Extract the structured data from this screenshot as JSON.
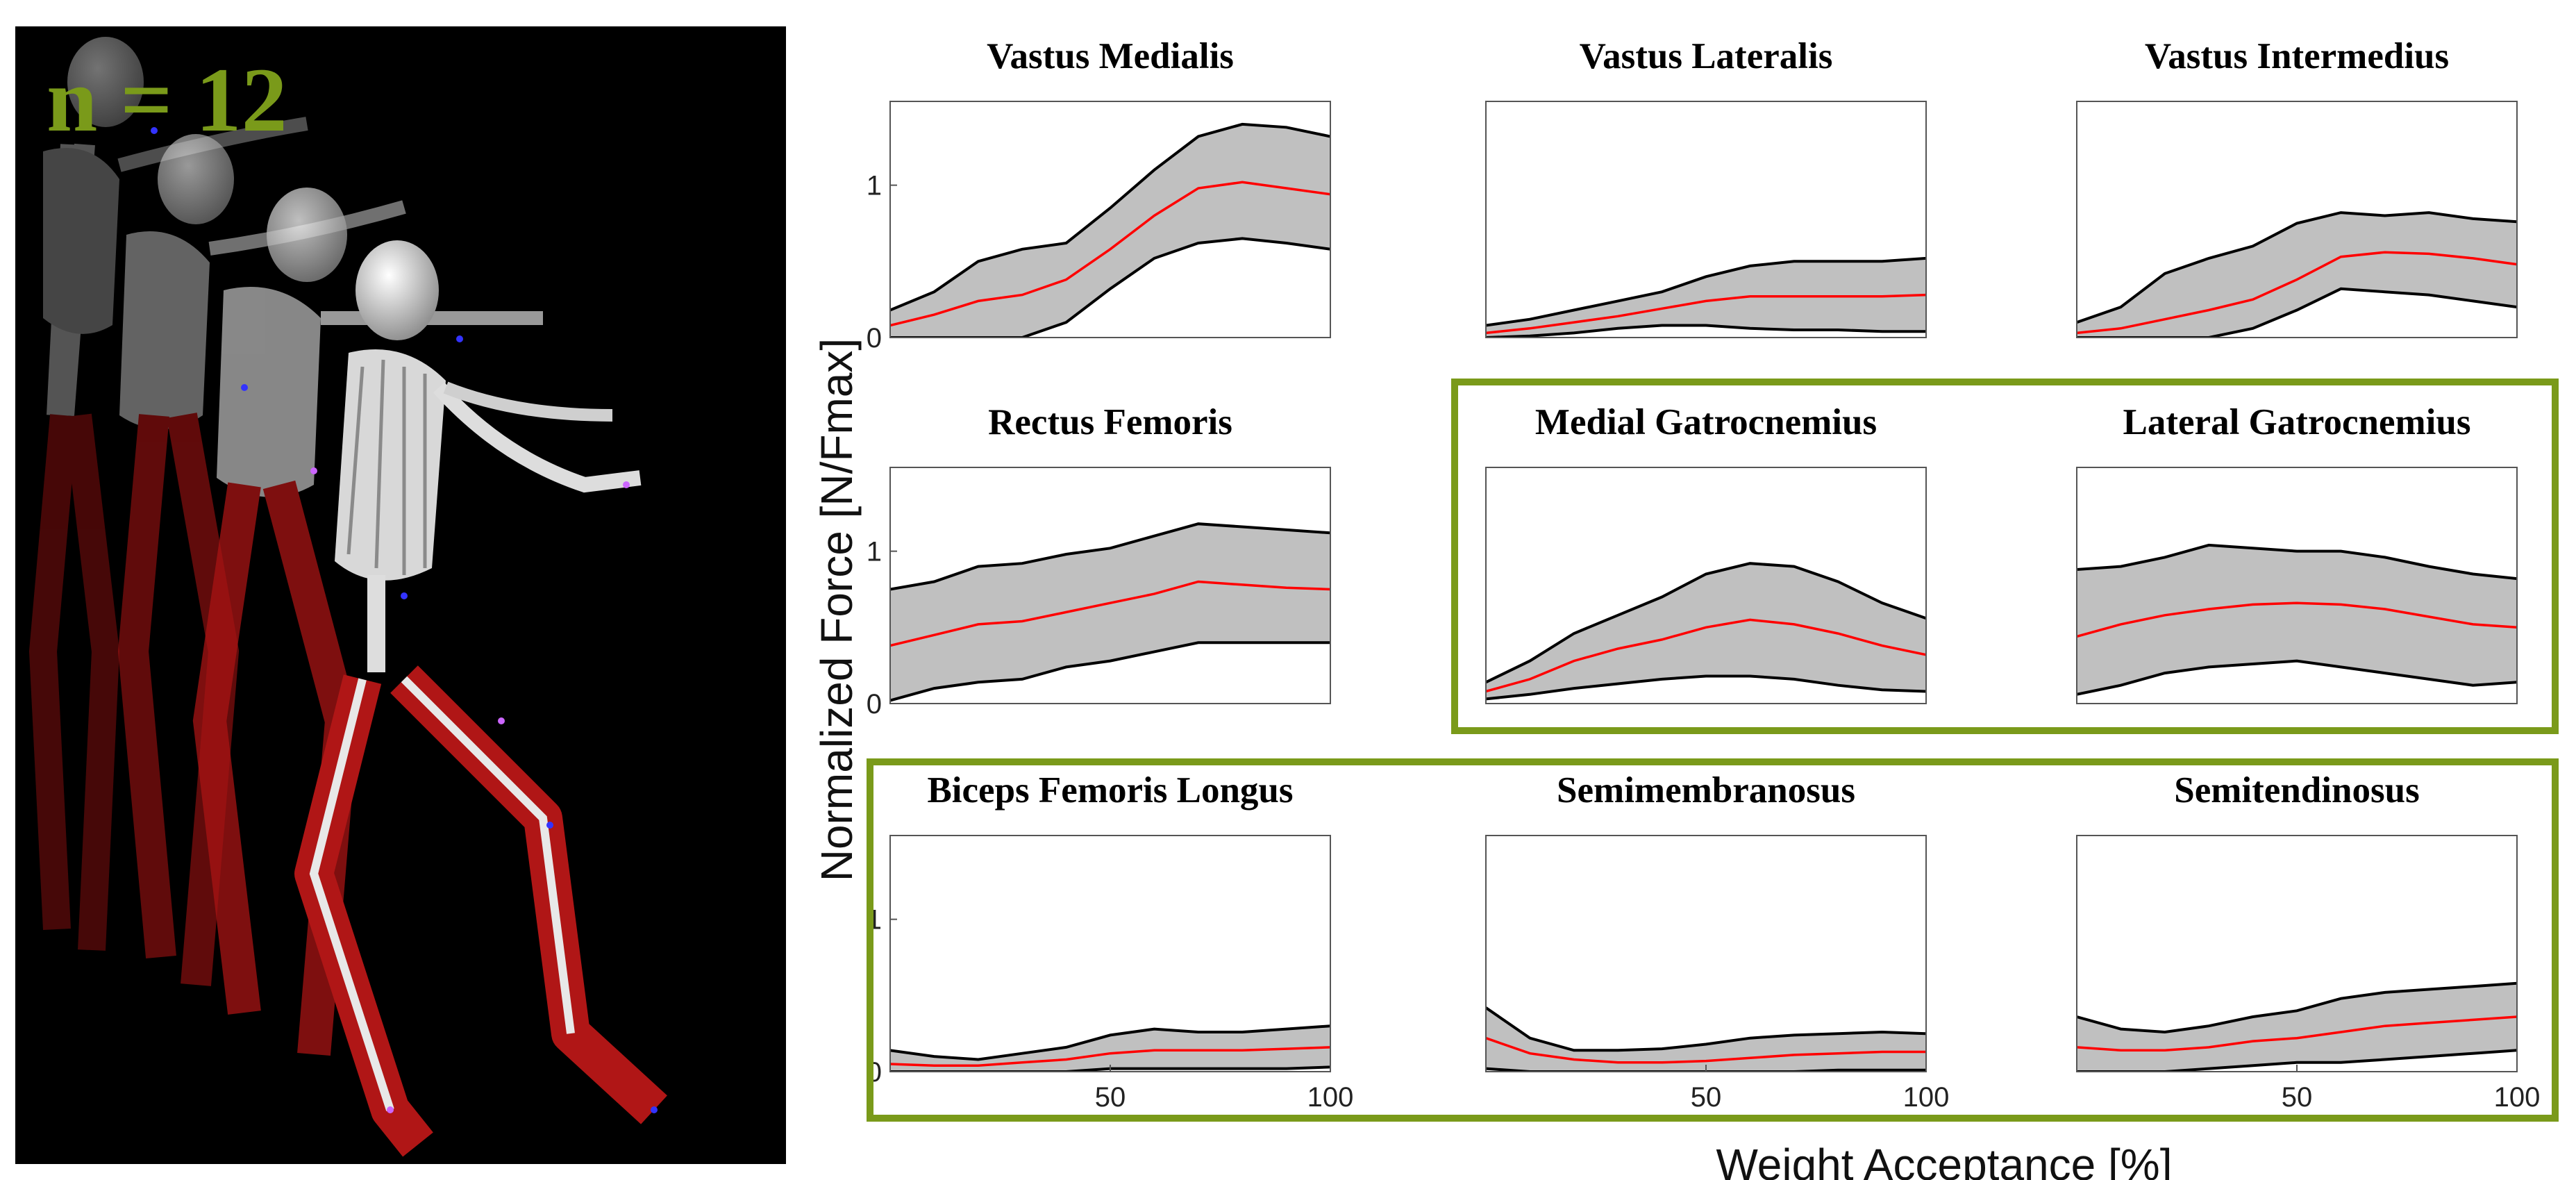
{
  "figure": {
    "n_label": "n = 12",
    "ylabel": "Normalized Force [N/Fmax]",
    "xlabel": "Weight Acceptance [%]",
    "highlight_color": "#7a9a1a",
    "band_color": "#c0c0c0",
    "mean_color": "#ff0000",
    "bound_color": "#000000"
  },
  "chart_data": [
    {
      "type": "area",
      "title": "Vastus Medialis",
      "xlim": [
        0,
        100
      ],
      "ylim": [
        0,
        1.55
      ],
      "yticks": [
        "0",
        "1"
      ],
      "xticks": [],
      "highlighted": false,
      "x": [
        0,
        10,
        20,
        30,
        40,
        50,
        60,
        70,
        80,
        90,
        100
      ],
      "mean": [
        0.08,
        0.15,
        0.24,
        0.28,
        0.38,
        0.58,
        0.8,
        0.98,
        1.02,
        0.98,
        0.94
      ],
      "upper": [
        0.18,
        0.3,
        0.5,
        0.58,
        0.62,
        0.85,
        1.1,
        1.32,
        1.4,
        1.38,
        1.32
      ],
      "lower": [
        -0.05,
        -0.05,
        -0.05,
        -0.02,
        0.1,
        0.32,
        0.52,
        0.62,
        0.65,
        0.62,
        0.58
      ]
    },
    {
      "type": "area",
      "title": "Vastus Lateralis",
      "xlim": [
        0,
        100
      ],
      "ylim": [
        0,
        1.55
      ],
      "yticks": [],
      "xticks": [],
      "highlighted": false,
      "x": [
        0,
        10,
        20,
        30,
        40,
        50,
        60,
        70,
        80,
        90,
        100
      ],
      "mean": [
        0.03,
        0.06,
        0.1,
        0.14,
        0.19,
        0.24,
        0.27,
        0.27,
        0.27,
        0.27,
        0.28
      ],
      "upper": [
        0.08,
        0.12,
        0.18,
        0.24,
        0.3,
        0.4,
        0.47,
        0.5,
        0.5,
        0.5,
        0.52
      ],
      "lower": [
        0.0,
        0.01,
        0.03,
        0.06,
        0.08,
        0.08,
        0.06,
        0.05,
        0.05,
        0.04,
        0.04
      ]
    },
    {
      "type": "area",
      "title": "Vastus Intermedius",
      "xlim": [
        0,
        100
      ],
      "ylim": [
        0,
        1.55
      ],
      "yticks": [],
      "xticks": [],
      "highlighted": false,
      "x": [
        0,
        10,
        20,
        30,
        40,
        50,
        60,
        70,
        80,
        90,
        100
      ],
      "mean": [
        0.03,
        0.06,
        0.12,
        0.18,
        0.25,
        0.38,
        0.53,
        0.56,
        0.55,
        0.52,
        0.48
      ],
      "upper": [
        0.1,
        0.2,
        0.42,
        0.52,
        0.6,
        0.75,
        0.82,
        0.8,
        0.82,
        0.78,
        0.76
      ],
      "lower": [
        -0.02,
        -0.03,
        -0.02,
        0.0,
        0.06,
        0.18,
        0.32,
        0.3,
        0.28,
        0.24,
        0.2
      ]
    },
    {
      "type": "area",
      "title": "Rectus Femoris",
      "xlim": [
        0,
        100
      ],
      "ylim": [
        0,
        1.55
      ],
      "yticks": [
        "0",
        "1"
      ],
      "xticks": [],
      "highlighted": false,
      "x": [
        0,
        10,
        20,
        30,
        40,
        50,
        60,
        70,
        80,
        90,
        100
      ],
      "mean": [
        0.38,
        0.45,
        0.52,
        0.54,
        0.6,
        0.66,
        0.72,
        0.8,
        0.78,
        0.76,
        0.75
      ],
      "upper": [
        0.75,
        0.8,
        0.9,
        0.92,
        0.98,
        1.02,
        1.1,
        1.18,
        1.16,
        1.14,
        1.12
      ],
      "lower": [
        0.02,
        0.1,
        0.14,
        0.16,
        0.24,
        0.28,
        0.34,
        0.4,
        0.4,
        0.4,
        0.4
      ]
    },
    {
      "type": "area",
      "title": "Medial Gatrocnemius",
      "xlim": [
        0,
        100
      ],
      "ylim": [
        0,
        1.55
      ],
      "yticks": [],
      "xticks": [],
      "highlighted": true,
      "x": [
        0,
        10,
        20,
        30,
        40,
        50,
        60,
        70,
        80,
        90,
        100
      ],
      "mean": [
        0.08,
        0.16,
        0.28,
        0.36,
        0.42,
        0.5,
        0.55,
        0.52,
        0.46,
        0.38,
        0.32
      ],
      "upper": [
        0.14,
        0.28,
        0.46,
        0.58,
        0.7,
        0.85,
        0.92,
        0.9,
        0.8,
        0.66,
        0.56
      ],
      "lower": [
        0.03,
        0.06,
        0.1,
        0.13,
        0.16,
        0.18,
        0.18,
        0.16,
        0.12,
        0.09,
        0.08
      ]
    },
    {
      "type": "area",
      "title": "Lateral  Gatrocnemius",
      "xlim": [
        0,
        100
      ],
      "ylim": [
        0,
        1.55
      ],
      "yticks": [],
      "xticks": [],
      "highlighted": true,
      "x": [
        0,
        10,
        20,
        30,
        40,
        50,
        60,
        70,
        80,
        90,
        100
      ],
      "mean": [
        0.44,
        0.52,
        0.58,
        0.62,
        0.65,
        0.66,
        0.65,
        0.62,
        0.57,
        0.52,
        0.5
      ],
      "upper": [
        0.88,
        0.9,
        0.96,
        1.04,
        1.02,
        1.0,
        1.0,
        0.96,
        0.9,
        0.85,
        0.82
      ],
      "lower": [
        0.06,
        0.12,
        0.2,
        0.24,
        0.26,
        0.28,
        0.24,
        0.2,
        0.16,
        0.12,
        0.14
      ]
    },
    {
      "type": "area",
      "title": "Biceps Femoris  Longus",
      "xlim": [
        0,
        100
      ],
      "ylim": [
        0,
        1.55
      ],
      "yticks": [
        "0",
        "1"
      ],
      "xticks": [
        "50",
        "100"
      ],
      "highlighted": true,
      "x": [
        0,
        10,
        20,
        30,
        40,
        50,
        60,
        70,
        80,
        90,
        100
      ],
      "mean": [
        0.05,
        0.04,
        0.04,
        0.06,
        0.08,
        0.12,
        0.14,
        0.14,
        0.14,
        0.15,
        0.16
      ],
      "upper": [
        0.14,
        0.1,
        0.08,
        0.12,
        0.16,
        0.24,
        0.28,
        0.26,
        0.26,
        0.28,
        0.3
      ],
      "lower": [
        -0.02,
        -0.03,
        -0.03,
        -0.02,
        0.0,
        0.02,
        0.02,
        0.02,
        0.02,
        0.02,
        0.03
      ]
    },
    {
      "type": "area",
      "title": "Semimembranosus",
      "xlim": [
        0,
        100
      ],
      "ylim": [
        0,
        1.55
      ],
      "yticks": [],
      "xticks": [
        "50",
        "100"
      ],
      "highlighted": true,
      "x": [
        0,
        10,
        20,
        30,
        40,
        50,
        60,
        70,
        80,
        90,
        100
      ],
      "mean": [
        0.22,
        0.12,
        0.08,
        0.06,
        0.06,
        0.07,
        0.09,
        0.11,
        0.12,
        0.13,
        0.13
      ],
      "upper": [
        0.42,
        0.22,
        0.14,
        0.14,
        0.15,
        0.18,
        0.22,
        0.24,
        0.25,
        0.26,
        0.25
      ],
      "lower": [
        0.02,
        0.0,
        0.0,
        0.0,
        0.0,
        0.0,
        0.0,
        0.0,
        0.01,
        0.01,
        0.01
      ]
    },
    {
      "type": "area",
      "title": "Semitendinosus",
      "xlim": [
        0,
        100
      ],
      "ylim": [
        0,
        1.55
      ],
      "yticks": [],
      "xticks": [
        "50",
        "100"
      ],
      "highlighted": true,
      "x": [
        0,
        10,
        20,
        30,
        40,
        50,
        60,
        70,
        80,
        90,
        100
      ],
      "mean": [
        0.16,
        0.14,
        0.14,
        0.16,
        0.2,
        0.22,
        0.26,
        0.3,
        0.32,
        0.34,
        0.36
      ],
      "upper": [
        0.36,
        0.28,
        0.26,
        0.3,
        0.36,
        0.4,
        0.48,
        0.52,
        0.54,
        0.56,
        0.58
      ],
      "lower": [
        -0.02,
        0.0,
        0.0,
        0.02,
        0.04,
        0.06,
        0.06,
        0.08,
        0.1,
        0.12,
        0.14
      ]
    }
  ]
}
